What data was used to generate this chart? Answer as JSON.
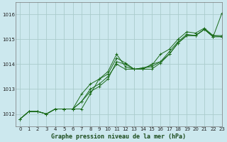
{
  "title": "Graphe pression niveau de la mer (hPa)",
  "bg_color": "#cce8ee",
  "grid_color": "#aacccc",
  "line_color": "#1a6b1a",
  "xlim": [
    -0.5,
    23
  ],
  "ylim": [
    1011.5,
    1016.5
  ],
  "yticks": [
    1012,
    1013,
    1014,
    1015,
    1016
  ],
  "xticks": [
    0,
    1,
    2,
    3,
    4,
    5,
    6,
    7,
    8,
    9,
    10,
    11,
    12,
    13,
    14,
    15,
    16,
    17,
    18,
    19,
    20,
    21,
    22,
    23
  ],
  "series": [
    [
      1011.8,
      1012.1,
      1012.1,
      1012.0,
      1012.2,
      1012.2,
      1012.2,
      1012.2,
      1012.8,
      1013.4,
      1013.6,
      1014.25,
      1014.05,
      1013.8,
      1013.8,
      1013.8,
      1014.05,
      1014.4,
      1014.85,
      1015.15,
      1015.15,
      1015.4,
      1015.1,
      1016.05
    ],
    [
      1011.8,
      1012.1,
      1012.1,
      1012.0,
      1012.2,
      1012.2,
      1012.2,
      1012.5,
      1012.9,
      1013.1,
      1013.4,
      1014.1,
      1014.0,
      1013.8,
      1013.8,
      1014.0,
      1014.1,
      1014.4,
      1014.85,
      1015.15,
      1015.15,
      1015.4,
      1015.1,
      1015.1
    ],
    [
      1011.8,
      1012.1,
      1012.1,
      1012.0,
      1012.2,
      1012.2,
      1012.2,
      1012.5,
      1013.0,
      1013.2,
      1013.5,
      1014.0,
      1013.8,
      1013.8,
      1013.85,
      1013.9,
      1014.1,
      1014.5,
      1014.9,
      1015.2,
      1015.15,
      1015.4,
      1015.15,
      1015.1
    ],
    [
      1011.8,
      1012.1,
      1012.1,
      1012.0,
      1012.2,
      1012.2,
      1012.2,
      1012.8,
      1013.2,
      1013.4,
      1013.7,
      1014.4,
      1013.9,
      1013.8,
      1013.85,
      1013.95,
      1014.4,
      1014.6,
      1015.0,
      1015.3,
      1015.25,
      1015.45,
      1015.15,
      1015.15
    ]
  ],
  "title_fontsize": 6.0,
  "tick_fontsize": 5.0
}
